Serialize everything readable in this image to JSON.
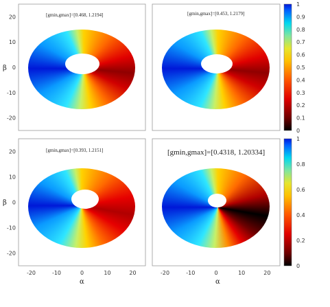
{
  "chart_data": {
    "type": "heatmap",
    "layout": "2x2 grid with two vertical colorbars",
    "colormap": "jet-like (black-red-orange-yellow-cyan-blue)",
    "xlim": [
      -25,
      25
    ],
    "ylim": [
      -25,
      25
    ],
    "xlabel": "α",
    "ylabel": "β",
    "x_ticks": [
      -20,
      -10,
      0,
      10,
      20
    ],
    "x_tick_labels": [
      "-20",
      "-10",
      "0",
      "10",
      "20"
    ],
    "y_ticks": [
      20,
      10,
      0,
      -10,
      -20
    ],
    "y_tick_labels": [
      "20",
      "10",
      "0",
      "-10",
      "-20"
    ],
    "colorbar_range": [
      0,
      1
    ],
    "colorbar_ticks": [
      1,
      0.9,
      0.8,
      0.7,
      0.6,
      0.5,
      0.4,
      0.3,
      0.2,
      0.1,
      0
    ],
    "colorbar_tick_labels": [
      "1",
      "0.9",
      "0.8",
      "0.7",
      "0.6",
      "0.5",
      "0.4",
      "0.3",
      "0.2",
      "0.1",
      "0"
    ],
    "colorbar_ticks_lower": [
      1,
      0.8,
      0.6,
      0.4,
      0.2,
      0
    ],
    "colorbar_tick_labels_lower": [
      "1",
      "0.8",
      "0.6",
      "0.4",
      "0.2",
      "0"
    ],
    "panels": [
      {
        "annotation": "[gmin,gmax]=[0.468, 1.2194]",
        "gmin": 0.468,
        "gmax": 1.2194
      },
      {
        "annotation": "[gmin,gmax]=[0.453, 1.2179]",
        "gmin": 0.453,
        "gmax": 1.2179
      },
      {
        "annotation": "[gmin,gmax]=[0.393, 1.2151]",
        "gmin": 0.393,
        "gmax": 1.2151
      },
      {
        "annotation": "[gmin,gmax]=[0.4318, 1.20334]",
        "gmin": 0.4318,
        "gmax": 1.20334
      }
    ]
  }
}
